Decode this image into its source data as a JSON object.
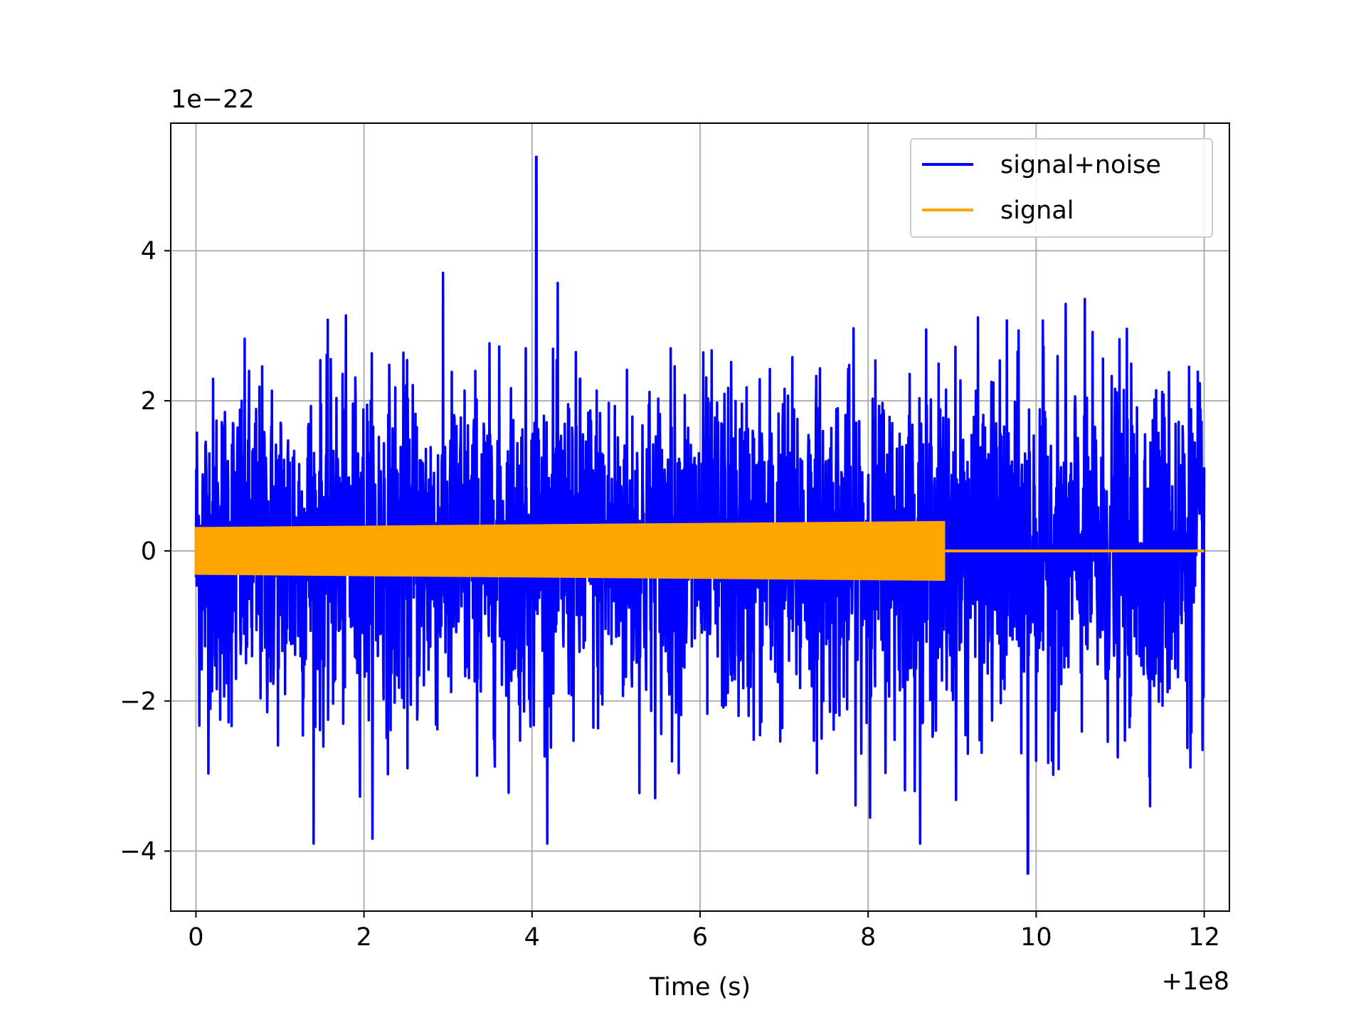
{
  "chart_data": {
    "type": "line",
    "title": "",
    "xlabel": "Time (s)",
    "ylabel": "",
    "x_offset_label": "+1e8",
    "y_scale_label": "1e−22",
    "xlim": [
      -0.3,
      12.3
    ],
    "ylim": [
      -4.8,
      5.7
    ],
    "x_ticks": [
      0,
      2,
      4,
      6,
      8,
      10,
      12
    ],
    "x_tick_labels": [
      "0",
      "2",
      "4",
      "6",
      "8",
      "10",
      "12"
    ],
    "y_ticks": [
      -4,
      -2,
      0,
      2,
      4
    ],
    "y_tick_labels": [
      "−4",
      "−2",
      "0",
      "2",
      "4"
    ],
    "grid": true,
    "legend_position": "top-right",
    "series": [
      {
        "name": "signal+noise",
        "color": "#0000ff",
        "x_range": [
          0,
          12
        ],
        "typical_range": [
          -2.5,
          2.5
        ],
        "max_value": 5.25,
        "max_at": 4.05,
        "min_value": -4.3,
        "min_at": 9.9
      },
      {
        "name": "signal",
        "color": "#ffa500",
        "x_range": [
          0,
          12
        ],
        "envelope_start": 0.3,
        "envelope_end": 0.38,
        "active_until": 8.9,
        "after_value": 0
      }
    ]
  }
}
